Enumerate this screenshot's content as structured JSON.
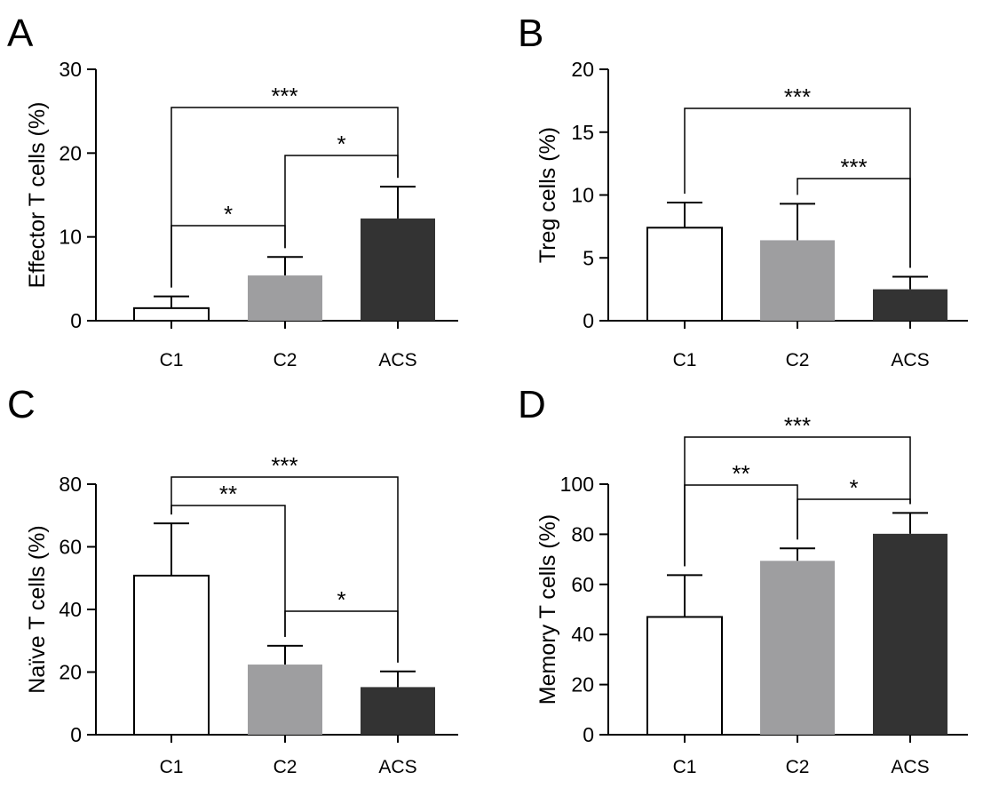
{
  "chart_data": [
    {
      "panel": "A",
      "type": "bar",
      "categories": [
        "C1",
        "C2",
        "ACS"
      ],
      "values": [
        1.5,
        5.4,
        12.2
      ],
      "error": [
        1.4,
        2.2,
        3.8
      ],
      "ylabel": "Effector T cells (%)",
      "ylim": [
        0,
        30
      ],
      "yticks": [
        "0",
        "10",
        "20",
        "30"
      ],
      "bar_colors": [
        "#ffffff",
        "#9e9ea0",
        "#333333"
      ],
      "significance": [
        {
          "from": 0,
          "to": 1,
          "label": "*"
        },
        {
          "from": 1,
          "to": 2,
          "label": "*"
        },
        {
          "from": 0,
          "to": 2,
          "label": "***"
        }
      ]
    },
    {
      "panel": "B",
      "type": "bar",
      "categories": [
        "C1",
        "C2",
        "ACS"
      ],
      "values": [
        7.4,
        6.4,
        2.5
      ],
      "error": [
        2.0,
        2.9,
        1.0
      ],
      "ylabel": "Treg cells (%)",
      "ylim": [
        0,
        20
      ],
      "yticks": [
        "0",
        "5",
        "10",
        "15",
        "20"
      ],
      "bar_colors": [
        "#ffffff",
        "#9e9ea0",
        "#333333"
      ],
      "significance": [
        {
          "from": 1,
          "to": 2,
          "label": "***"
        },
        {
          "from": 0,
          "to": 2,
          "label": "***"
        }
      ]
    },
    {
      "panel": "C",
      "type": "bar",
      "categories": [
        "C1",
        "C2",
        "ACS"
      ],
      "values": [
        50.8,
        22.4,
        15.2
      ],
      "error": [
        16.7,
        6.0,
        5.0
      ],
      "ylabel": "Naïve T cells (%)",
      "ylim": [
        0,
        80
      ],
      "yticks": [
        "0",
        "20",
        "40",
        "60",
        "80"
      ],
      "bar_colors": [
        "#ffffff",
        "#9e9ea0",
        "#333333"
      ],
      "significance": [
        {
          "from": 0,
          "to": 1,
          "label": "**"
        },
        {
          "from": 1,
          "to": 2,
          "label": "*"
        },
        {
          "from": 0,
          "to": 2,
          "label": "***"
        }
      ]
    },
    {
      "panel": "D",
      "type": "bar",
      "categories": [
        "C1",
        "C2",
        "ACS"
      ],
      "values": [
        47.0,
        69.4,
        80.2
      ],
      "error": [
        16.7,
        5.0,
        8.3
      ],
      "ylabel": "Memory T cells (%)",
      "ylim": [
        0,
        100
      ],
      "yticks": [
        "0",
        "20",
        "40",
        "60",
        "80",
        "100"
      ],
      "bar_colors": [
        "#ffffff",
        "#9e9ea0",
        "#333333"
      ],
      "significance": [
        {
          "from": 0,
          "to": 1,
          "label": "**"
        },
        {
          "from": 1,
          "to": 2,
          "label": "*"
        },
        {
          "from": 0,
          "to": 2,
          "label": "***"
        }
      ]
    }
  ]
}
